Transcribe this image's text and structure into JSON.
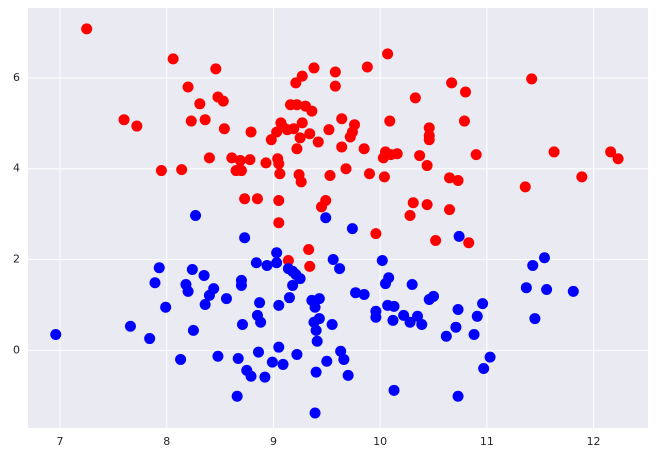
{
  "chart_data": {
    "type": "scatter",
    "grid": true,
    "xlim": [
      6.7,
      12.51
    ],
    "ylim": [
      -1.71,
      7.54
    ],
    "xticks": [
      7,
      8,
      9,
      10,
      11,
      12
    ],
    "yticks": [
      0,
      2,
      4,
      6
    ],
    "series": [
      {
        "color": "#ff0000",
        "x": [
          7.25,
          8.06,
          8.46,
          8.2,
          7.6,
          7.72,
          7.95,
          8.14,
          8.23,
          8.36,
          8.31,
          8.48,
          8.53,
          8.54,
          8.4,
          8.61,
          8.69,
          8.65,
          8.7,
          8.73,
          8.85,
          8.79,
          8.78,
          8.93,
          8.98,
          9.03,
          9.07,
          9.09,
          9.04,
          9.06,
          9.05,
          9.05,
          9.05,
          9.13,
          9.16,
          9.22,
          9.27,
          9.3,
          9.21,
          9.27,
          9.38,
          9.36,
          9.19,
          9.22,
          9.25,
          9.34,
          9.42,
          9.24,
          9.26,
          9.45,
          9.49,
          9.33,
          9.34,
          9.14,
          9.52,
          9.53,
          9.58,
          9.58,
          9.64,
          9.64,
          9.68,
          9.72,
          9.74,
          9.76,
          9.88,
          9.85,
          9.9,
          9.96,
          10.07,
          10.09,
          10.05,
          10.03,
          10.04,
          10.1,
          10.16,
          10.28,
          10.31,
          10.33,
          10.37,
          10.46,
          10.46,
          10.46,
          10.44,
          10.44,
          10.52,
          10.67,
          10.65,
          10.73,
          10.65,
          10.8,
          10.79,
          10.83,
          10.9,
          11.42,
          11.36,
          11.63,
          11.89,
          12.16,
          12.23
        ],
        "values": [
          7.08,
          6.42,
          6.2,
          5.8,
          5.08,
          4.94,
          3.96,
          3.98,
          5.05,
          5.08,
          5.43,
          5.58,
          5.49,
          4.88,
          4.24,
          4.24,
          4.18,
          3.96,
          3.96,
          3.34,
          3.34,
          4.81,
          4.2,
          4.13,
          4.64,
          4.81,
          5.01,
          4.92,
          4.22,
          3.89,
          4.11,
          3.3,
          2.81,
          4.86,
          5.41,
          5.41,
          5.01,
          5.38,
          5.89,
          6.04,
          6.22,
          5.27,
          4.88,
          4.44,
          4.68,
          4.77,
          4.59,
          3.87,
          3.71,
          3.16,
          3.3,
          2.22,
          1.85,
          1.98,
          4.86,
          3.85,
          5.82,
          6.13,
          5.1,
          4.48,
          4.0,
          4.7,
          4.81,
          4.97,
          6.24,
          4.44,
          3.89,
          2.57,
          6.53,
          5.05,
          4.37,
          4.24,
          3.82,
          4.31,
          4.33,
          2.97,
          3.25,
          5.56,
          4.29,
          4.9,
          4.73,
          4.64,
          4.07,
          3.21,
          2.42,
          5.89,
          3.8,
          3.74,
          3.1,
          5.69,
          5.05,
          2.37,
          4.31,
          5.98,
          3.6,
          4.37,
          3.82,
          4.37,
          4.22
        ]
      },
      {
        "color": "#0000ff",
        "x": [
          6.96,
          7.66,
          7.84,
          7.93,
          7.89,
          7.99,
          8.13,
          8.18,
          8.2,
          8.24,
          8.27,
          8.25,
          8.35,
          8.36,
          8.4,
          8.44,
          8.48,
          8.56,
          8.67,
          8.66,
          8.7,
          8.7,
          8.73,
          8.71,
          8.75,
          8.79,
          8.84,
          8.85,
          8.87,
          8.88,
          8.86,
          8.92,
          8.94,
          8.99,
          9.03,
          9.03,
          9.05,
          9.05,
          9.09,
          9.14,
          9.18,
          9.15,
          9.21,
          9.18,
          9.25,
          9.22,
          9.36,
          9.38,
          9.4,
          9.39,
          9.43,
          9.43,
          9.41,
          9.4,
          9.39,
          9.49,
          9.5,
          9.55,
          9.56,
          9.62,
          9.63,
          9.66,
          9.7,
          9.74,
          9.77,
          9.85,
          9.96,
          9.96,
          10.02,
          10.05,
          10.08,
          10.07,
          10.13,
          10.12,
          10.13,
          10.22,
          10.28,
          10.3,
          10.35,
          10.39,
          10.46,
          10.5,
          10.62,
          10.71,
          10.73,
          10.73,
          10.74,
          10.88,
          10.91,
          10.96,
          10.97,
          11.03,
          11.37,
          11.43,
          11.45,
          11.54,
          11.56,
          11.81
        ],
        "values": [
          0.35,
          0.53,
          0.26,
          1.82,
          1.49,
          0.95,
          -0.2,
          1.45,
          1.3,
          1.78,
          2.97,
          0.44,
          1.65,
          1.01,
          1.21,
          1.36,
          -0.13,
          1.14,
          -0.18,
          -1.01,
          1.43,
          1.54,
          2.48,
          0.57,
          -0.44,
          -0.57,
          1.93,
          0.77,
          1.05,
          0.62,
          -0.04,
          -0.59,
          1.87,
          -0.26,
          2.15,
          1.93,
          0.99,
          0.07,
          -0.31,
          1.8,
          1.74,
          1.16,
          1.67,
          1.43,
          1.58,
          -0.09,
          1.1,
          0.62,
          0.44,
          0.95,
          0.7,
          1.14,
          0.2,
          -0.48,
          -1.38,
          2.92,
          -0.24,
          0.57,
          2.0,
          1.8,
          -0.02,
          -0.2,
          -0.55,
          2.68,
          1.27,
          1.23,
          0.86,
          0.73,
          1.98,
          1.47,
          1.6,
          0.99,
          0.97,
          0.66,
          -0.88,
          0.77,
          0.62,
          1.45,
          0.75,
          0.57,
          1.12,
          1.19,
          0.31,
          0.51,
          0.9,
          -1.01,
          2.51,
          0.35,
          0.75,
          1.03,
          -0.4,
          -0.15,
          1.38,
          1.87,
          0.7,
          2.04,
          1.34,
          1.3
        ]
      }
    ]
  }
}
